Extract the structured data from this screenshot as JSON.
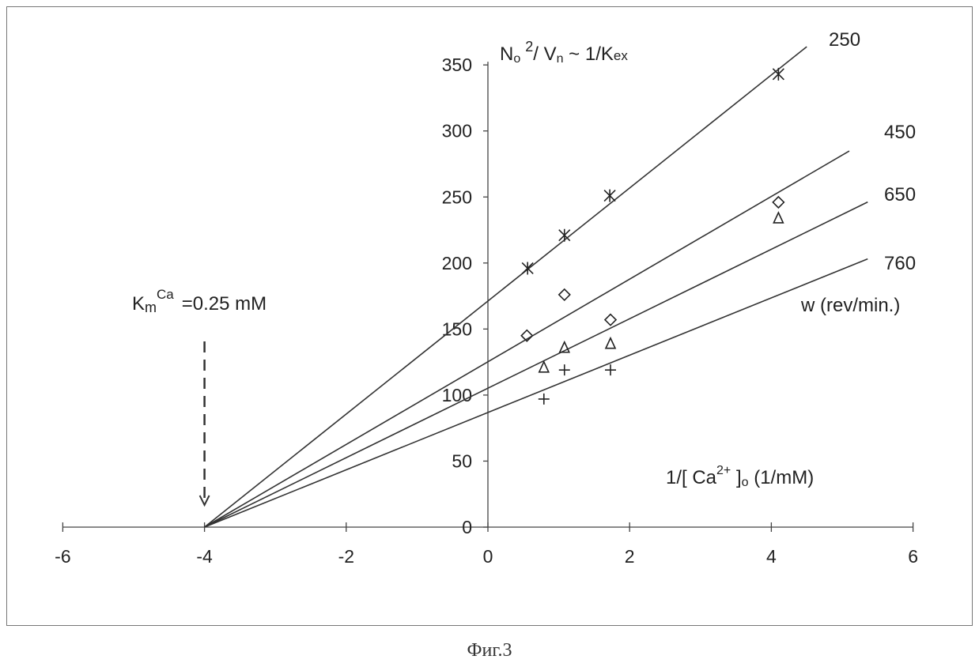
{
  "chart_data": {
    "type": "line",
    "title": "",
    "xlabel": "1/[ Ca2+ ]o  (1/mM)",
    "ylabel": "No 2/ Vn ~ 1/Kex",
    "xlim": [
      -6,
      6
    ],
    "ylim": [
      0,
      350
    ],
    "xticks": [
      -6,
      -4,
      -2,
      0,
      2,
      4,
      6
    ],
    "yticks": [
      0,
      50,
      100,
      150,
      200,
      250,
      300,
      350
    ],
    "legend_title": "w (rev/min.)",
    "annotation": {
      "text_main": "K",
      "text_sub": "m",
      "text_sup": "Ca",
      "text_value": "=0.25 mM",
      "x": -4,
      "y": 0
    },
    "series": [
      {
        "name": "250",
        "marker": "asterisk",
        "points": [
          [
            0.56,
            196
          ],
          [
            1.08,
            221
          ],
          [
            1.72,
            251
          ],
          [
            4.1,
            343
          ]
        ],
        "fit": {
          "x0": -4,
          "slope": 42.8,
          "x_end": 4.5
        }
      },
      {
        "name": "450",
        "marker": "diamond",
        "points": [
          [
            0.55,
            145
          ],
          [
            1.08,
            176
          ],
          [
            1.73,
            157
          ],
          [
            4.1,
            246
          ]
        ],
        "fit": {
          "x0": -4,
          "slope": 31.3,
          "x_end": 5.1
        }
      },
      {
        "name": "650",
        "marker": "triangle",
        "points": [
          [
            0.79,
            121
          ],
          [
            1.08,
            136
          ],
          [
            1.73,
            139
          ],
          [
            4.1,
            234
          ]
        ],
        "fit": {
          "x0": -4,
          "slope": 26.3,
          "x_end": 5.36
        }
      },
      {
        "name": "760",
        "marker": "plus",
        "points": [
          [
            0.79,
            97
          ],
          [
            1.08,
            119
          ],
          [
            1.73,
            119
          ]
        ],
        "fit": {
          "x0": -4,
          "slope": 21.7,
          "x_end": 5.36
        }
      }
    ]
  },
  "caption": "Фиг.3"
}
